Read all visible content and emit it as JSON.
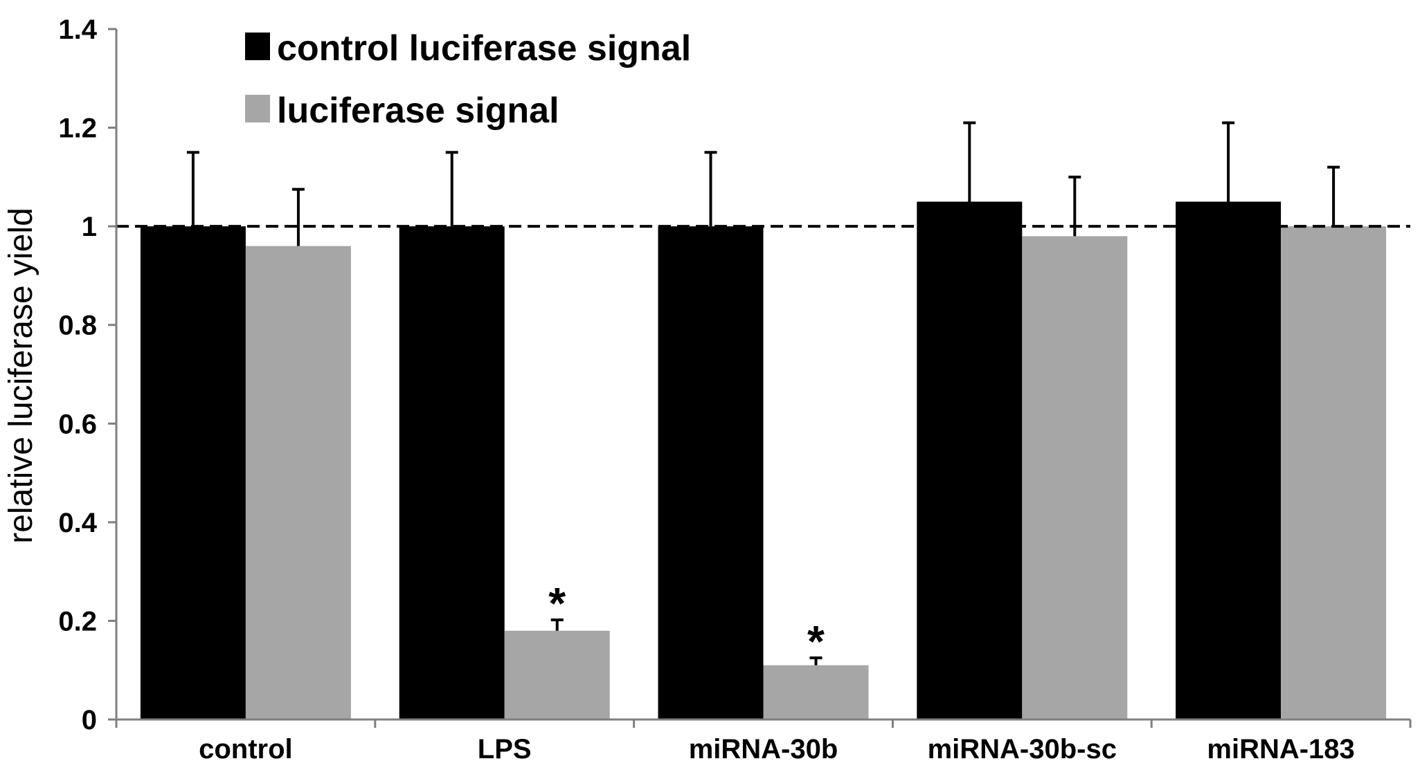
{
  "chart_data": {
    "type": "bar",
    "title": "",
    "xlabel": "",
    "ylabel": "relative luciferase yield",
    "ylim": [
      0,
      1.4
    ],
    "yticks": [
      "0",
      "0.2",
      "0.4",
      "0.6",
      "0.8",
      "1",
      "1.2",
      "1.4"
    ],
    "categories": [
      "control",
      "LPS",
      "miRNA-30b",
      "miRNA-30b-sc",
      "miRNA-183"
    ],
    "series": [
      {
        "name": "control luciferase signal",
        "color": "#000000",
        "values": [
          1.0,
          1.0,
          1.0,
          1.05,
          1.05
        ],
        "errors": [
          0.15,
          0.15,
          0.15,
          0.16,
          0.16
        ]
      },
      {
        "name": "luciferase signal",
        "color": "#a6a6a6",
        "values": [
          0.96,
          0.18,
          0.11,
          0.98,
          1.0
        ],
        "errors": [
          0.115,
          0.022,
          0.015,
          0.12,
          0.12
        ]
      }
    ],
    "reference_line": {
      "value": 1.0,
      "style": "dashed"
    },
    "significance": [
      {
        "category": "LPS",
        "series": "luciferase signal",
        "label": "*"
      },
      {
        "category": "miRNA-30b",
        "series": "luciferase signal",
        "label": "*"
      }
    ],
    "legend_position": "top-left",
    "grid": false
  }
}
